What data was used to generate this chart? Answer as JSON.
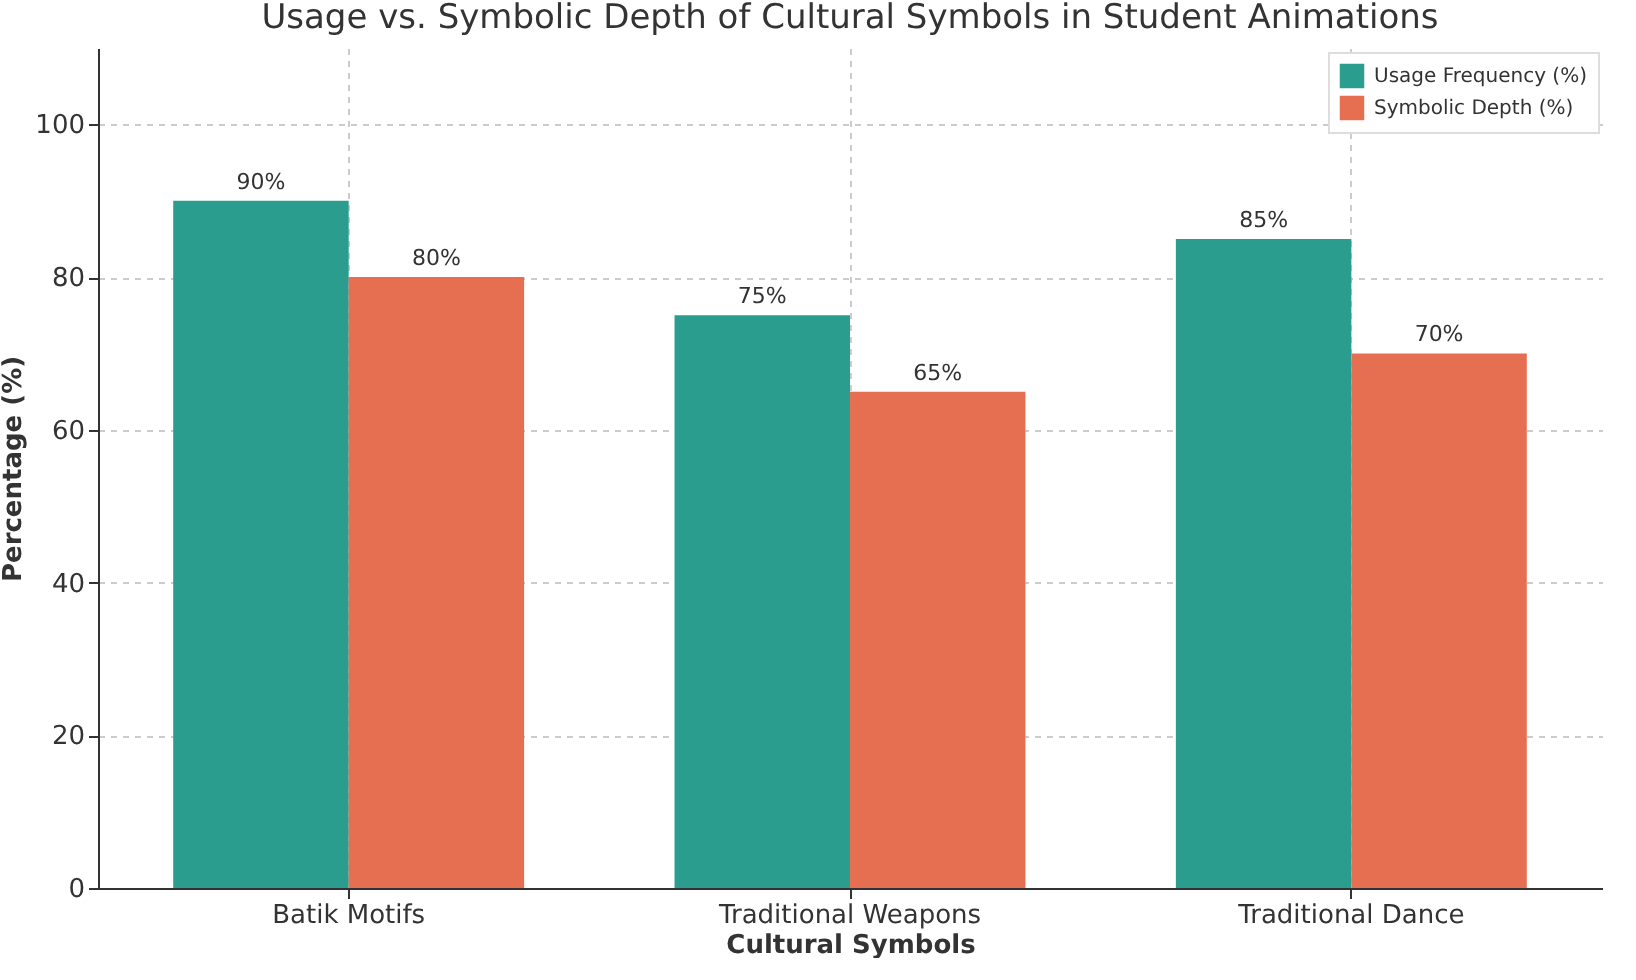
{
  "chart_data": {
    "type": "bar",
    "title": "Usage vs. Symbolic Depth of Cultural Symbols in Student Animations",
    "xlabel": "Cultural Symbols",
    "ylabel": "Percentage (%)",
    "categories": [
      "Batik Motifs",
      "Traditional Weapons",
      "Traditional Dance"
    ],
    "series": [
      {
        "name": "Usage Frequency (%)",
        "color": "#2a9d8f",
        "values": [
          90,
          75,
          85
        ],
        "value_labels": [
          "90%",
          "75%",
          "85%"
        ]
      },
      {
        "name": "Symbolic Depth (%)",
        "color": "#e76f51",
        "values": [
          80,
          65,
          70
        ],
        "value_labels": [
          "80%",
          "65%",
          "70%"
        ]
      }
    ],
    "ylim": [
      0,
      110
    ],
    "yticks": [
      0,
      20,
      40,
      60,
      80,
      100
    ],
    "grid": true,
    "legend": "top right"
  }
}
